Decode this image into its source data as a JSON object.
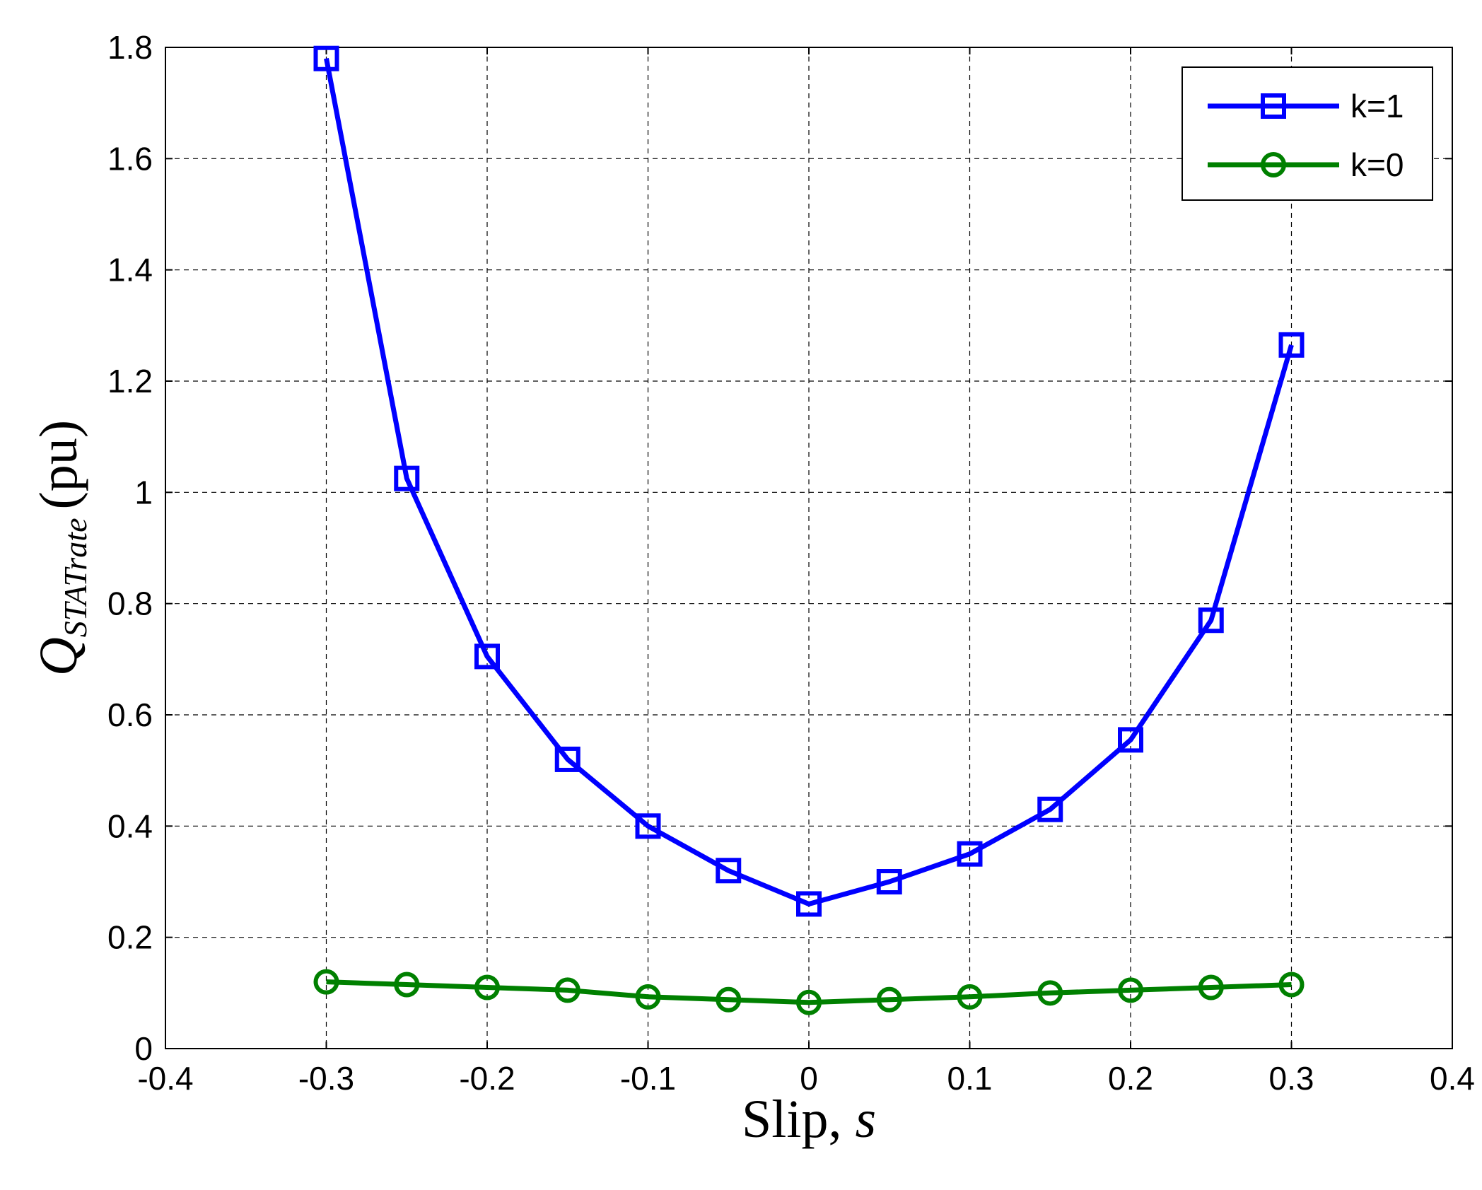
{
  "chart_data": {
    "type": "line",
    "title": "",
    "xlabel": "Slip, s",
    "xlabel_parts": {
      "text": "Slip, ",
      "var": "s"
    },
    "ylabel": "Q_STATrate (pu)",
    "ylabel_parts": {
      "symbol": "Q",
      "subscript": "STATrate",
      "unit": "(pu)"
    },
    "xlim": [
      -0.4,
      0.4
    ],
    "ylim": [
      0,
      1.8
    ],
    "x_ticks": [
      "-0.4",
      "-0.3",
      "-0.2",
      "-0.1",
      "0",
      "0.1",
      "0.2",
      "0.3",
      "0.4"
    ],
    "y_ticks": [
      "0",
      "0.2",
      "0.4",
      "0.6",
      "0.8",
      "1",
      "1.2",
      "1.4",
      "1.6",
      "1.8"
    ],
    "grid": true,
    "legend_position": "top-right",
    "x": [
      -0.3,
      -0.25,
      -0.2,
      -0.15,
      -0.1,
      -0.05,
      0,
      0.05,
      0.1,
      0.15,
      0.2,
      0.25,
      0.3
    ],
    "series": [
      {
        "name": "k=1",
        "color": "#0000ff",
        "marker": "square",
        "values": [
          1.78,
          1.025,
          0.705,
          0.52,
          0.4,
          0.32,
          0.26,
          0.3,
          0.35,
          0.43,
          0.555,
          0.77,
          1.265
        ]
      },
      {
        "name": "k=0",
        "color": "#008000",
        "marker": "circle",
        "values": [
          0.12,
          0.115,
          0.11,
          0.105,
          0.093,
          0.088,
          0.083,
          0.088,
          0.093,
          0.1,
          0.105,
          0.11,
          0.115
        ]
      }
    ]
  }
}
